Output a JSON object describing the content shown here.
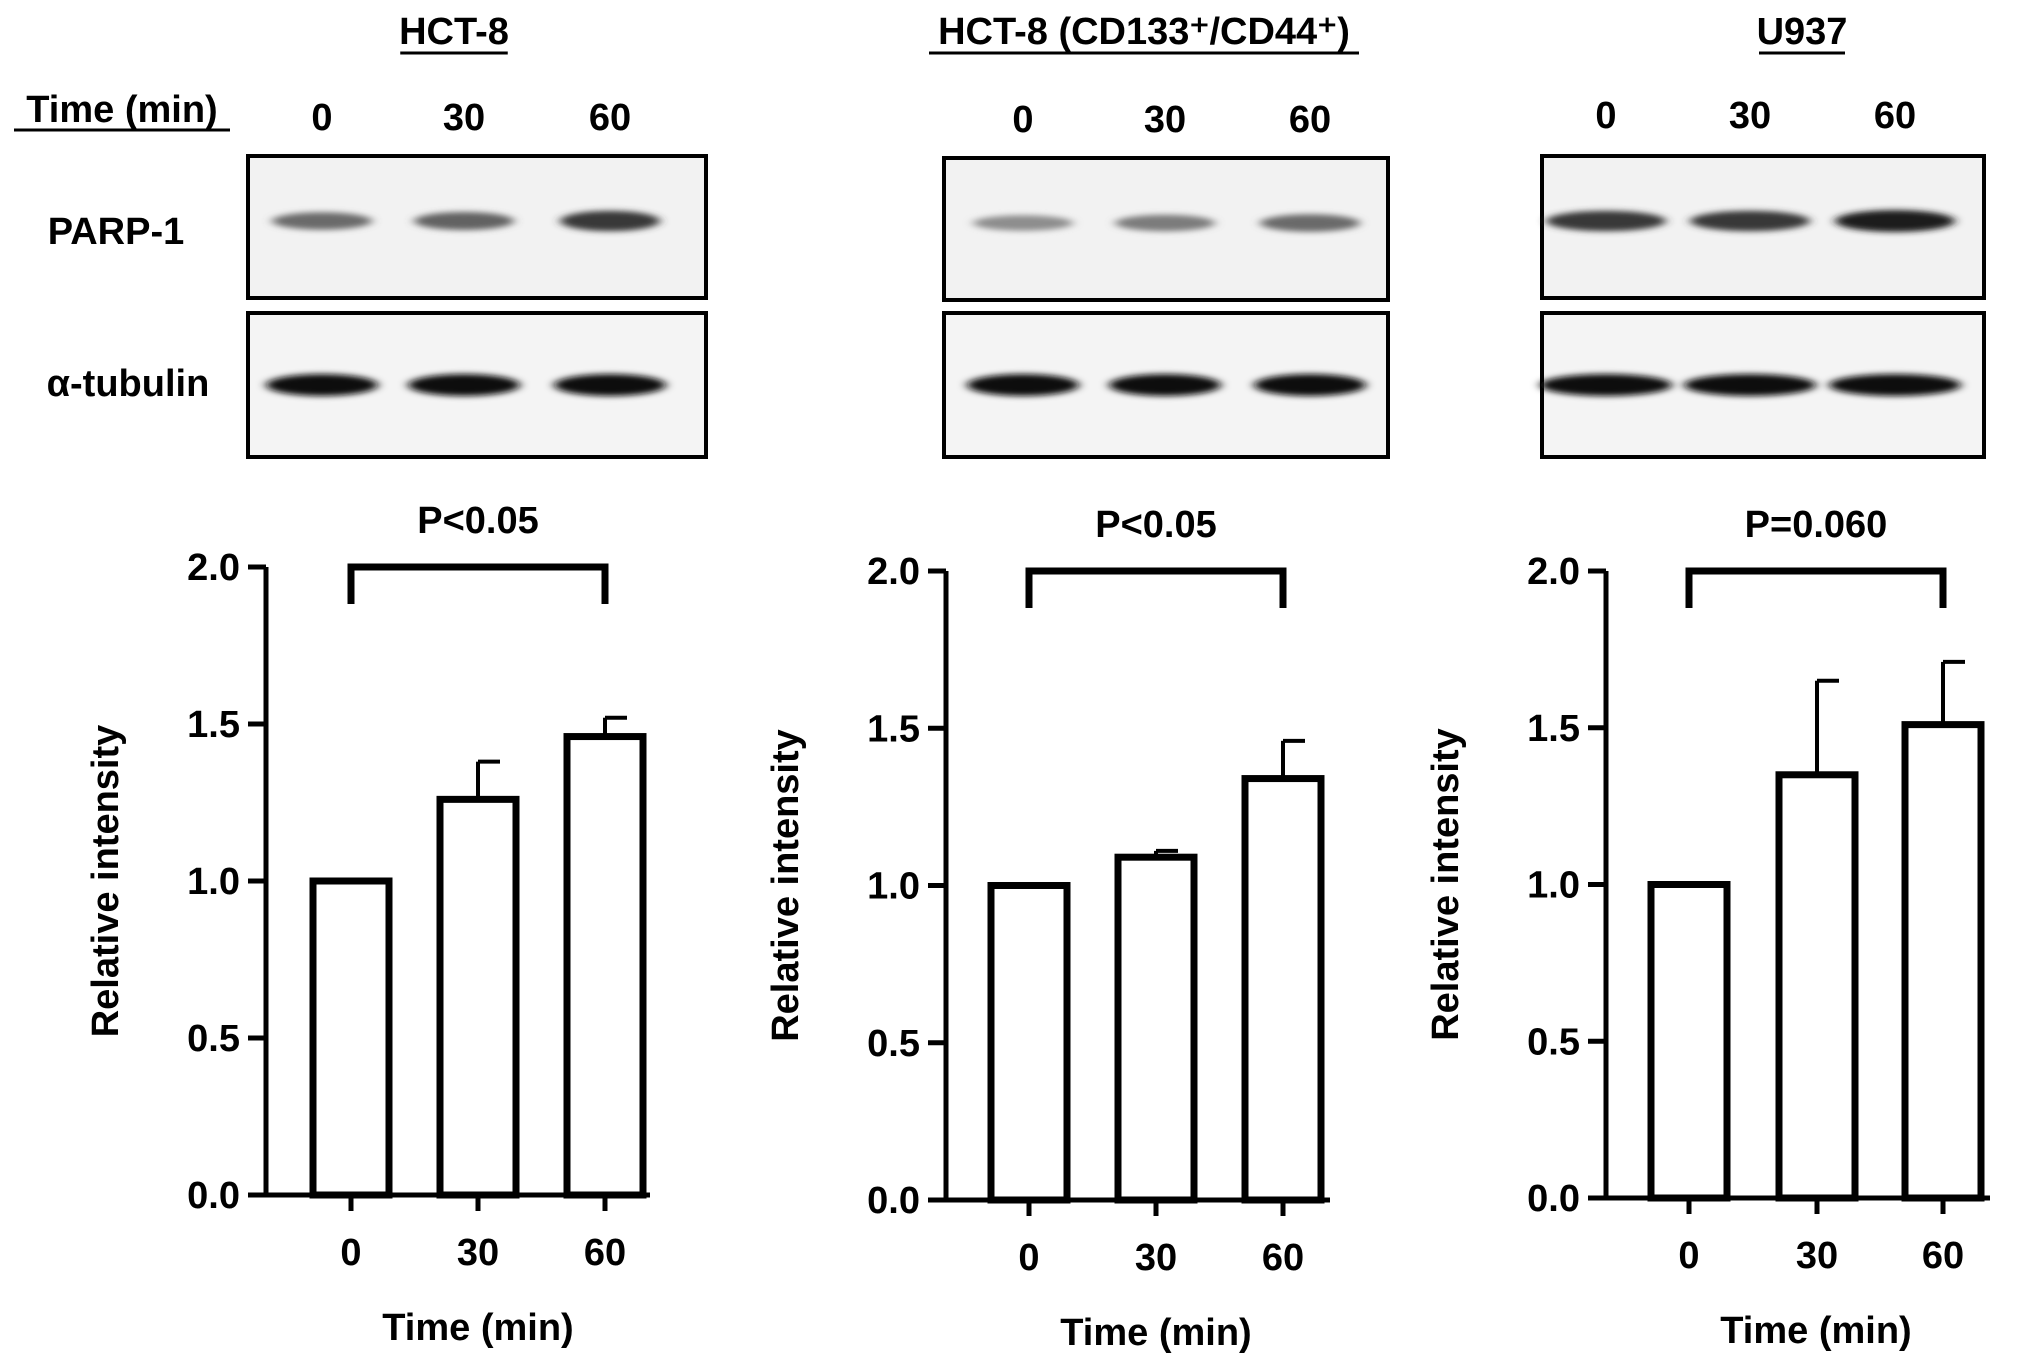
{
  "figure": {
    "time_label": "Time (min)",
    "band_labels": [
      "PARP-1",
      "α-tubulin"
    ],
    "lanes": [
      "0",
      "30",
      "60"
    ]
  },
  "panels": [
    {
      "title": "HCT-8",
      "blot": {
        "parp1_intensity": [
          0.55,
          0.6,
          0.85
        ],
        "tubulin_intensity": [
          1.0,
          1.0,
          1.0
        ]
      }
    },
    {
      "title": "HCT-8 (CD133⁺/CD44⁺)",
      "blot": {
        "parp1_intensity": [
          0.35,
          0.45,
          0.55
        ],
        "tubulin_intensity": [
          1.0,
          1.0,
          1.0
        ]
      }
    },
    {
      "title": "U937",
      "blot": {
        "parp1_intensity": [
          0.85,
          0.85,
          1.0
        ],
        "tubulin_intensity": [
          1.0,
          1.0,
          1.0
        ]
      }
    }
  ],
  "chart_data": [
    {
      "type": "bar",
      "categories": [
        "0",
        "30",
        "60"
      ],
      "values": [
        1.0,
        1.26,
        1.46
      ],
      "error_up": [
        0,
        0.12,
        0.06
      ],
      "ylim": [
        0,
        2.0
      ],
      "yticks": [
        "0.0",
        "0.5",
        "1.0",
        "1.5",
        "2.0"
      ],
      "ylabel": "Relative intensity",
      "xlabel": "Time (min)",
      "significance": {
        "from": 0,
        "to": 2,
        "label": "P<0.05"
      }
    },
    {
      "type": "bar",
      "categories": [
        "0",
        "30",
        "60"
      ],
      "values": [
        1.0,
        1.09,
        1.34
      ],
      "error_up": [
        0,
        0.02,
        0.12
      ],
      "ylim": [
        0,
        2.0
      ],
      "yticks": [
        "0.0",
        "0.5",
        "1.0",
        "1.5",
        "2.0"
      ],
      "ylabel": "Relative intensity",
      "xlabel": "Time (min)",
      "significance": {
        "from": 0,
        "to": 2,
        "label": "P<0.05"
      }
    },
    {
      "type": "bar",
      "categories": [
        "0",
        "30",
        "60"
      ],
      "values": [
        1.0,
        1.35,
        1.51
      ],
      "error_up": [
        0,
        0.3,
        0.2
      ],
      "ylim": [
        0,
        2.0
      ],
      "yticks": [
        "0.0",
        "0.5",
        "1.0",
        "1.5",
        "2.0"
      ],
      "ylabel": "Relative intensity",
      "xlabel": "Time (min)",
      "significance": {
        "from": 0,
        "to": 2,
        "label": "P=0.060"
      }
    }
  ]
}
